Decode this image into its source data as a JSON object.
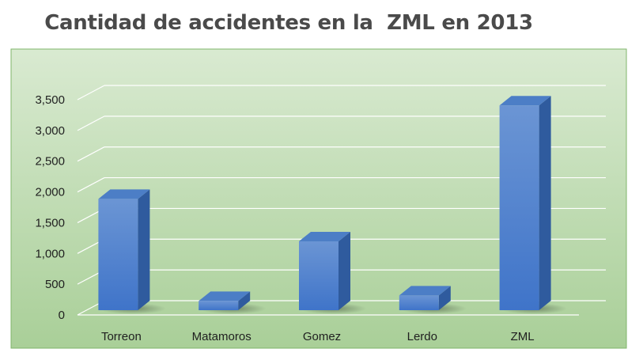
{
  "chart_data": {
    "type": "bar",
    "title": "Cantidad de accidentes en la  ZML en 2013",
    "categories": [
      "Torreon",
      "Matamoros",
      "Gomez",
      "Lerdo",
      "ZML"
    ],
    "values": [
      1810,
      150,
      1120,
      240,
      3330
    ],
    "xlabel": "",
    "ylabel": "",
    "ylim": [
      0,
      3500
    ],
    "yticks": [
      0,
      500,
      1000,
      1500,
      2000,
      2500,
      3000,
      3500
    ],
    "ytick_labels": [
      "0",
      "500",
      "1,000",
      "1,500",
      "2,000",
      "2,500",
      "3,000",
      "3,500"
    ],
    "grid": true,
    "legend": "none",
    "style": "3d-column",
    "colors": {
      "bar_front_top": "#6b95d4",
      "bar_front_bottom": "#3f74c9",
      "bar_side": "#2f5b9e",
      "bar_top": "#4c7ec6",
      "plot_bg_light": "#d9ead1",
      "plot_bg_dark": "#a9cf98",
      "plot_border": "#7fb56a",
      "gridline": "#ffffff"
    }
  }
}
